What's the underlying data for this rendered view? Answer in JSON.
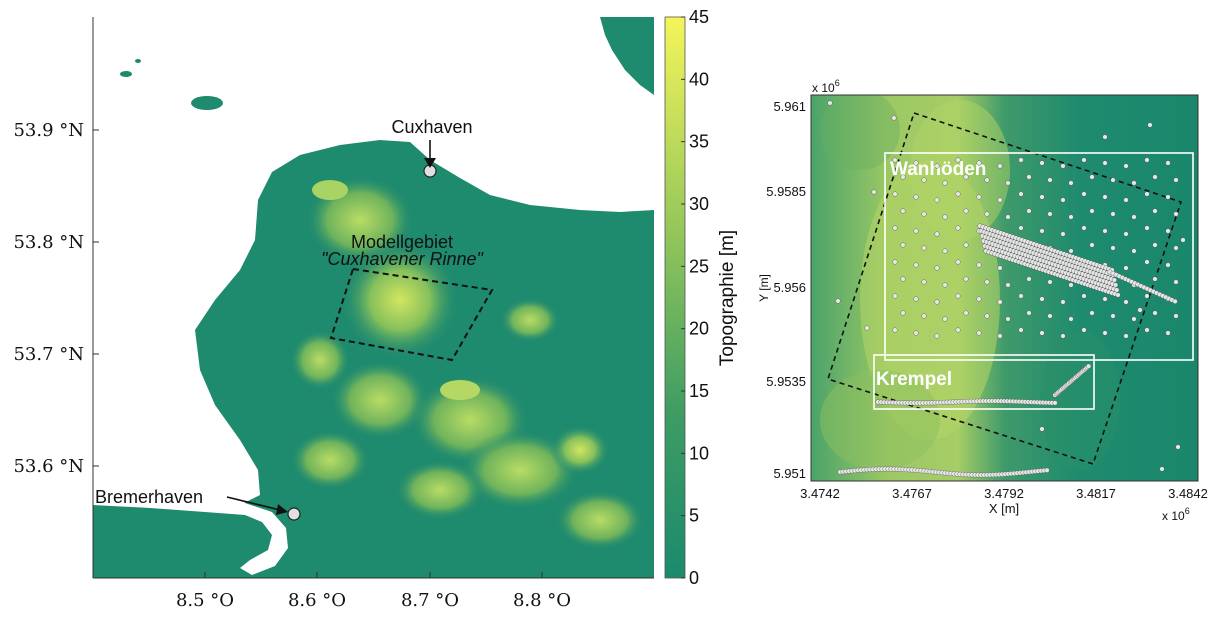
{
  "colors": {
    "water": "#ffffff",
    "land_low": "#1e8a6e",
    "land_mid": "#5fae5f",
    "land_high": "#c8e05a",
    "colorbar_top": "#f5f55a",
    "colorbar_bottom": "#1a8a6e",
    "marker": "#dcdcdc",
    "box_outline": "#ffffff"
  },
  "left_map": {
    "y_ticks": [
      "53.9 °N",
      "53.8 °N",
      "53.7 °N",
      "53.6 °N"
    ],
    "x_ticks": [
      "8.5 °O",
      "8.6 °O",
      "8.7 °O",
      "8.8 °O"
    ],
    "places": {
      "cuxhaven": "Cuxhaven",
      "bremerhaven": "Bremerhaven"
    },
    "model_area": {
      "line1": "Modellgebiet",
      "line2": "\"Cuxhavener Rinne\""
    },
    "colorbar": {
      "label": "Topographie [m]",
      "ticks": [
        "45",
        "40",
        "35",
        "30",
        "25",
        "20",
        "15",
        "10",
        "5",
        "0"
      ],
      "range": [
        0,
        45
      ]
    }
  },
  "right_map": {
    "y_multiplier": "x 10",
    "y_multiplier_exp": "6",
    "x_multiplier": "x 10",
    "x_multiplier_exp": "6",
    "y_label": "Y [m]",
    "x_label": "X [m]",
    "y_ticks": [
      "5.961",
      "5.9585",
      "5.956",
      "5.9535",
      "5.951"
    ],
    "x_ticks": [
      "3.4742",
      "3.4767",
      "3.4792",
      "3.4817",
      "3.4842"
    ],
    "regions": {
      "wanhoeden": "Wanhöden",
      "krempel": "Krempel"
    }
  }
}
